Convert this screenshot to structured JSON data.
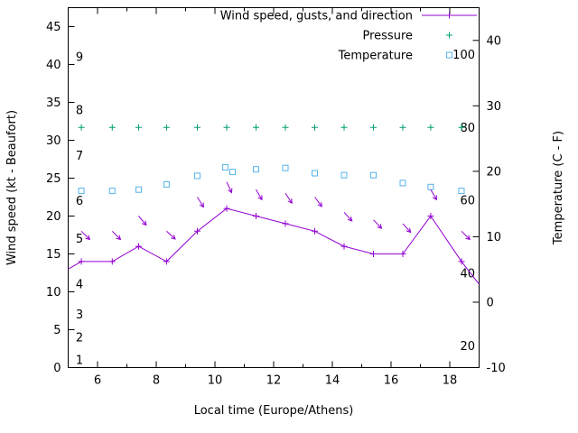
{
  "colors": {
    "background": "#ffffff",
    "axis": "#000000",
    "text": "#000000"
  },
  "chart_data": {
    "type": "line",
    "title": "",
    "xlabel": "Local time (Europe/Athens)",
    "ylabel": "Wind speed (kt - Beaufort)",
    "y2label": "Temperature (C - F)",
    "x_range": [
      5,
      19
    ],
    "x_ticks": [
      6,
      8,
      10,
      12,
      14,
      16,
      18
    ],
    "x_minor_tick_step": 1,
    "y_range": [
      0,
      47.5
    ],
    "y_ticks": [
      0,
      5,
      10,
      15,
      20,
      25,
      30,
      35,
      40,
      45
    ],
    "y2_range": [
      -10,
      45
    ],
    "y2_ticks": [
      -10,
      0,
      10,
      20,
      30,
      40
    ],
    "beaufort_scale_labels": [
      {
        "text": "1",
        "kt": 1
      },
      {
        "text": "2",
        "kt": 4
      },
      {
        "text": "3",
        "kt": 7
      },
      {
        "text": "4",
        "kt": 11
      },
      {
        "text": "5",
        "kt": 17
      },
      {
        "text": "6",
        "kt": 22
      },
      {
        "text": "7",
        "kt": 28
      },
      {
        "text": "8",
        "kt": 34
      },
      {
        "text": "9",
        "kt": 41
      }
    ],
    "fahrenheit_scale_labels": [
      {
        "text": "20",
        "celsius": -6.7
      },
      {
        "text": "40",
        "celsius": 4.4
      },
      {
        "text": "60",
        "celsius": 15.6
      },
      {
        "text": "80",
        "celsius": 26.7
      },
      {
        "text": "100",
        "celsius": 37.8
      }
    ],
    "legend": {
      "position": "top-right",
      "entries": [
        {
          "label": "Wind speed, gusts, and direction",
          "marker": "line-plus",
          "color": "#9400d3"
        },
        {
          "label": "Pressure",
          "marker": "plus",
          "color": "#009e73"
        },
        {
          "label": "Temperature",
          "marker": "open-square",
          "color": "#56b4e9"
        }
      ]
    },
    "series": [
      {
        "name": "wind_speed_kt",
        "axis": "left",
        "color": "#9400d3",
        "marker": "plus",
        "x": [
          5.45,
          6.5,
          7.4,
          8.35,
          9.4,
          10.4,
          11.4,
          12.4,
          13.4,
          14.4,
          15.4,
          16.4,
          17.35,
          18.4
        ],
        "values": [
          14,
          14,
          16,
          14,
          18,
          21,
          20,
          19,
          18,
          16,
          15,
          15,
          20,
          14
        ],
        "edge_points": {
          "x": [
            5,
            19
          ],
          "values": [
            13,
            11
          ]
        }
      },
      {
        "name": "wind_gusts_kt_with_direction",
        "axis": "left",
        "color": "#9400d3",
        "marker": "arrow",
        "x": [
          5.45,
          6.5,
          7.4,
          8.35,
          9.4,
          10.4,
          11.4,
          12.4,
          13.4,
          14.4,
          15.4,
          16.4,
          17.35,
          18.4
        ],
        "values": [
          18,
          18,
          20,
          18,
          22.5,
          24.5,
          23.5,
          23,
          22.5,
          20.5,
          19.5,
          19,
          23.5,
          18
        ],
        "direction_deg": [
          135,
          135,
          140,
          132,
          148,
          155,
          150,
          146,
          143,
          138,
          136,
          138,
          150,
          135
        ]
      },
      {
        "name": "pressure",
        "axis": "left",
        "color": "#009e73",
        "marker": "plus",
        "x": [
          5.45,
          6.5,
          7.4,
          8.35,
          9.4,
          10.4,
          11.4,
          12.4,
          13.4,
          14.4,
          15.4,
          16.4,
          17.35,
          18.4
        ],
        "values": [
          31.7,
          31.7,
          31.7,
          31.7,
          31.7,
          31.7,
          31.7,
          31.7,
          31.7,
          31.7,
          31.7,
          31.7,
          31.7,
          31.7
        ]
      },
      {
        "name": "temperature_c",
        "axis": "right",
        "color": "#56b4e9",
        "marker": "open-square",
        "x": [
          5.45,
          6.5,
          7.4,
          8.35,
          9.4,
          10.35,
          10.6,
          11.4,
          12.4,
          13.4,
          14.4,
          15.4,
          16.4,
          17.35,
          18.4
        ],
        "values": [
          17,
          17,
          17.2,
          18,
          19.3,
          20.6,
          19.9,
          20.3,
          20.5,
          19.7,
          19.4,
          19.4,
          18.2,
          17.6,
          17
        ]
      }
    ]
  }
}
